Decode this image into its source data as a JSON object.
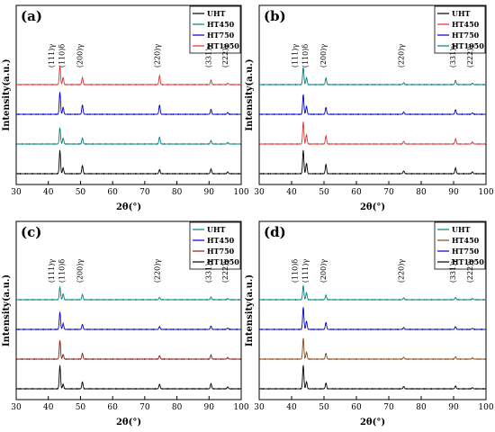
{
  "chart_data": [
    {
      "type": "line",
      "panel_label": "(a)",
      "xlabel": "2θ(°)",
      "ylabel": "Intensity(a.u.)",
      "xlim": [
        30,
        100
      ],
      "xticks": [
        "30",
        "40",
        "50",
        "60",
        "70",
        "80",
        "90",
        "100"
      ],
      "legend_position": "top-right",
      "legend": [
        "UHT",
        "HT450",
        "HT750",
        "HT1050"
      ],
      "peak_labels": [
        "(111)γ",
        "(110)δ",
        "(200)γ",
        "(220)γ",
        "(331)γ",
        "(222)γ"
      ],
      "series": [
        {
          "name": "UHT",
          "color": "#000000",
          "peaks": [
            {
              "x": 43.6,
              "h": 1.0
            },
            {
              "x": 44.6,
              "h": 0.25
            },
            {
              "x": 50.6,
              "h": 0.35
            },
            {
              "x": 74.6,
              "h": 0.18
            },
            {
              "x": 90.6,
              "h": 0.2
            },
            {
              "x": 95.8,
              "h": 0.08
            }
          ]
        },
        {
          "name": "HT450",
          "color": "#008080",
          "peaks": [
            {
              "x": 43.6,
              "h": 0.7
            },
            {
              "x": 44.6,
              "h": 0.25
            },
            {
              "x": 50.6,
              "h": 0.25
            },
            {
              "x": 74.6,
              "h": 0.3
            },
            {
              "x": 90.6,
              "h": 0.15
            },
            {
              "x": 95.8,
              "h": 0.06
            }
          ]
        },
        {
          "name": "HT750",
          "color": "#0000cc",
          "peaks": [
            {
              "x": 43.6,
              "h": 0.95
            },
            {
              "x": 44.6,
              "h": 0.3
            },
            {
              "x": 50.6,
              "h": 0.4
            },
            {
              "x": 74.6,
              "h": 0.4
            },
            {
              "x": 90.6,
              "h": 0.22
            },
            {
              "x": 95.8,
              "h": 0.08
            }
          ]
        },
        {
          "name": "HT1050",
          "color": "#e03030",
          "peaks": [
            {
              "x": 43.6,
              "h": 0.8
            },
            {
              "x": 44.6,
              "h": 0.3
            },
            {
              "x": 50.6,
              "h": 0.3
            },
            {
              "x": 74.6,
              "h": 0.38
            },
            {
              "x": 90.6,
              "h": 0.2
            },
            {
              "x": 95.8,
              "h": 0.06
            }
          ]
        }
      ]
    },
    {
      "type": "line",
      "panel_label": "(b)",
      "xlabel": "2θ(°)",
      "ylabel": "Intensity(a.u.)",
      "xlim": [
        30,
        100
      ],
      "xticks": [
        "30",
        "40",
        "50",
        "60",
        "70",
        "80",
        "90",
        "100"
      ],
      "legend_position": "top-right",
      "legend": [
        "UHT",
        "HT450",
        "HT750",
        "HT1050"
      ],
      "peak_labels": [
        "(111)γ",
        "(110)δ",
        "(200)γ",
        "(220)γ",
        "(331)γ",
        "(222)γ"
      ],
      "series": [
        {
          "name": "UHT",
          "color": "#000000",
          "peaks": [
            {
              "x": 43.6,
              "h": 1.0
            },
            {
              "x": 44.6,
              "h": 0.45
            },
            {
              "x": 50.6,
              "h": 0.4
            },
            {
              "x": 74.6,
              "h": 0.12
            },
            {
              "x": 90.6,
              "h": 0.25
            },
            {
              "x": 95.8,
              "h": 0.08
            }
          ]
        },
        {
          "name": "HT450",
          "color": "#e03030",
          "peaks": [
            {
              "x": 43.6,
              "h": 0.95
            },
            {
              "x": 44.6,
              "h": 0.4
            },
            {
              "x": 50.6,
              "h": 0.35
            },
            {
              "x": 74.6,
              "h": 0.12
            },
            {
              "x": 90.6,
              "h": 0.22
            },
            {
              "x": 95.8,
              "h": 0.08
            }
          ]
        },
        {
          "name": "HT750",
          "color": "#0000cc",
          "peaks": [
            {
              "x": 43.6,
              "h": 0.85
            },
            {
              "x": 44.6,
              "h": 0.35
            },
            {
              "x": 50.6,
              "h": 0.3
            },
            {
              "x": 74.6,
              "h": 0.1
            },
            {
              "x": 90.6,
              "h": 0.2
            },
            {
              "x": 95.8,
              "h": 0.06
            }
          ]
        },
        {
          "name": "HT1050",
          "color": "#008080",
          "peaks": [
            {
              "x": 43.6,
              "h": 0.75
            },
            {
              "x": 44.6,
              "h": 0.3
            },
            {
              "x": 50.6,
              "h": 0.28
            },
            {
              "x": 74.6,
              "h": 0.08
            },
            {
              "x": 90.6,
              "h": 0.18
            },
            {
              "x": 95.8,
              "h": 0.06
            }
          ]
        }
      ]
    },
    {
      "type": "line",
      "panel_label": "(c)",
      "xlabel": "2θ(°)",
      "ylabel": "Intensity(a.u.)",
      "xlim": [
        30,
        100
      ],
      "xticks": [
        "30",
        "40",
        "50",
        "60",
        "70",
        "80",
        "90",
        "100"
      ],
      "legend_position": "top-right",
      "legend": [
        "UHT",
        "HT450",
        "HT750",
        "HT1050"
      ],
      "peak_labels": [
        "(111)γ",
        "(110)δ",
        "(200)γ",
        "(220)γ",
        "(331)γ",
        "(222)γ"
      ],
      "series": [
        {
          "name": "HT1050",
          "color": "#000000",
          "peaks": [
            {
              "x": 43.6,
              "h": 1.0
            },
            {
              "x": 44.6,
              "h": 0.2
            },
            {
              "x": 50.6,
              "h": 0.3
            },
            {
              "x": 74.6,
              "h": 0.2
            },
            {
              "x": 90.6,
              "h": 0.22
            },
            {
              "x": 95.8,
              "h": 0.08
            }
          ]
        },
        {
          "name": "HT750",
          "color": "#8b1a1a",
          "peaks": [
            {
              "x": 43.6,
              "h": 0.8
            },
            {
              "x": 44.6,
              "h": 0.2
            },
            {
              "x": 50.6,
              "h": 0.25
            },
            {
              "x": 74.6,
              "h": 0.15
            },
            {
              "x": 90.6,
              "h": 0.18
            },
            {
              "x": 95.8,
              "h": 0.06
            }
          ]
        },
        {
          "name": "HT450",
          "color": "#0000cc",
          "peaks": [
            {
              "x": 43.6,
              "h": 0.75
            },
            {
              "x": 44.6,
              "h": 0.25
            },
            {
              "x": 50.6,
              "h": 0.22
            },
            {
              "x": 74.6,
              "h": 0.12
            },
            {
              "x": 90.6,
              "h": 0.15
            },
            {
              "x": 95.8,
              "h": 0.06
            }
          ]
        },
        {
          "name": "UHT",
          "color": "#008080",
          "peaks": [
            {
              "x": 43.6,
              "h": 0.55
            },
            {
              "x": 44.6,
              "h": 0.25
            },
            {
              "x": 50.6,
              "h": 0.22
            },
            {
              "x": 74.6,
              "h": 0.1
            },
            {
              "x": 90.6,
              "h": 0.12
            },
            {
              "x": 95.8,
              "h": 0.05
            }
          ]
        }
      ]
    },
    {
      "type": "line",
      "panel_label": "(d)",
      "xlabel": "2θ(°)",
      "ylabel": "Intensity(a.u.)",
      "xlim": [
        30,
        100
      ],
      "xticks": [
        "30",
        "40",
        "50",
        "60",
        "70",
        "80",
        "90",
        "100"
      ],
      "legend_position": "top-right",
      "legend": [
        "UHT",
        "HT450",
        "HT750",
        "HT1050"
      ],
      "peak_labels": [
        "(110)δ",
        "(111)γ",
        "(200)γ",
        "(220)γ",
        "(331)γ",
        "(222)γ"
      ],
      "series": [
        {
          "name": "HT1050",
          "color": "#000000",
          "peaks": [
            {
              "x": 43.6,
              "h": 1.0
            },
            {
              "x": 44.6,
              "h": 0.3
            },
            {
              "x": 50.6,
              "h": 0.25
            },
            {
              "x": 74.6,
              "h": 0.1
            },
            {
              "x": 90.6,
              "h": 0.12
            },
            {
              "x": 95.8,
              "h": 0.05
            }
          ]
        },
        {
          "name": "HT450",
          "color": "#8b4513",
          "peaks": [
            {
              "x": 43.6,
              "h": 0.9
            },
            {
              "x": 44.6,
              "h": 0.3
            },
            {
              "x": 50.6,
              "h": 0.25
            },
            {
              "x": 74.6,
              "h": 0.08
            },
            {
              "x": 90.6,
              "h": 0.1
            },
            {
              "x": 95.8,
              "h": 0.05
            }
          ]
        },
        {
          "name": "HT750",
          "color": "#0000cc",
          "peaks": [
            {
              "x": 43.6,
              "h": 0.95
            },
            {
              "x": 44.6,
              "h": 0.35
            },
            {
              "x": 50.6,
              "h": 0.3
            },
            {
              "x": 74.6,
              "h": 0.08
            },
            {
              "x": 90.6,
              "h": 0.12
            },
            {
              "x": 95.8,
              "h": 0.05
            }
          ]
        },
        {
          "name": "UHT",
          "color": "#008080",
          "peaks": [
            {
              "x": 43.6,
              "h": 0.6
            },
            {
              "x": 44.6,
              "h": 0.3
            },
            {
              "x": 50.6,
              "h": 0.2
            },
            {
              "x": 74.6,
              "h": 0.08
            },
            {
              "x": 90.6,
              "h": 0.1
            },
            {
              "x": 95.8,
              "h": 0.05
            }
          ]
        }
      ]
    }
  ],
  "legend_colors": {
    "a": [
      "#000000",
      "#008080",
      "#0000cc",
      "#e03030"
    ],
    "b": [
      "#000000",
      "#e03030",
      "#0000cc",
      "#008080"
    ],
    "c": [
      "#008080",
      "#0000cc",
      "#8b1a1a",
      "#000000"
    ],
    "d": [
      "#008080",
      "#8b4513",
      "#0000cc",
      "#000000"
    ]
  }
}
